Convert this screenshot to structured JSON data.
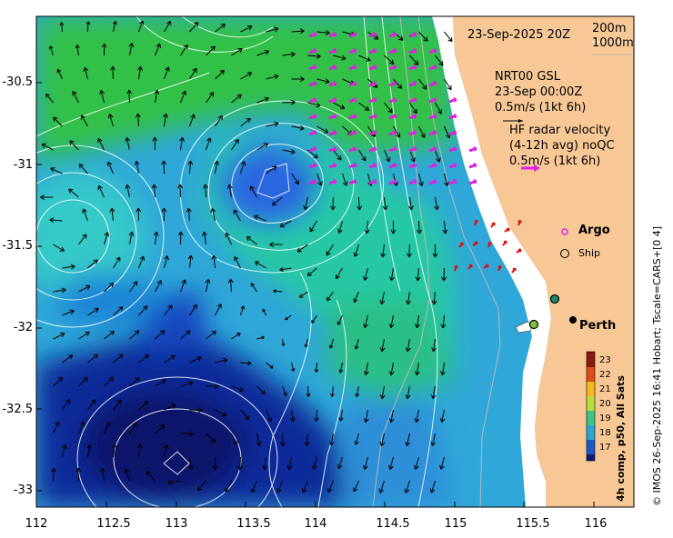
{
  "map": {
    "timestamp": "23-Sep-2025 20Z",
    "depth_legend": [
      "200m",
      "1000m"
    ],
    "gsl": {
      "line1": "NRT00 GSL",
      "line2": "23-Sep 00:00Z",
      "scale": "0.5m/s (1kt 6h)"
    },
    "hf": {
      "line1": "HF radar velocity",
      "line2": "(4-12h avg) noQC",
      "scale": "0.5m/s (1kt 6h)"
    },
    "argo_label": "Argo",
    "ship_label": "Ship",
    "city": "Perth",
    "lat_ticks": [
      "-30.5",
      "-31",
      "-31.5",
      "-32",
      "-32.5",
      "-33"
    ],
    "lon_ticks": [
      "112",
      "112.5",
      "113",
      "113.5",
      "114",
      "114.5",
      "115",
      "115.5",
      "116"
    ],
    "colorbar_title": "4h comp, p50, All Sats",
    "colorbar_ticks": [
      "23",
      "22",
      "21",
      "20",
      "19",
      "18",
      "17"
    ],
    "credit": "© IMOS 26-Sep-2025 16:41 Hobart; Tscale=CARS+[0 4]",
    "colors": {
      "land": "#f7c896",
      "cool": "#0a2a9a",
      "mid": "#2aa6d4",
      "warm": "#1cc79a",
      "green": "#2ec24a",
      "gsl_arrow": "#e020e0",
      "hf_arrow": "#e01010"
    }
  }
}
